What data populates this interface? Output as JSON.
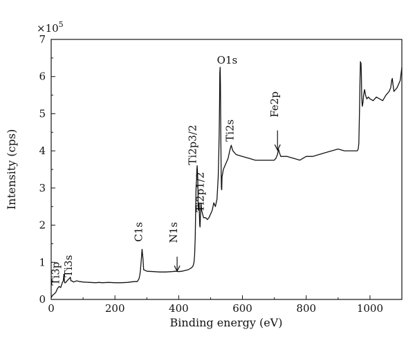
{
  "chart_data": {
    "type": "line",
    "xlabel": "Binding energy (eV)",
    "ylabel": "Intensity (cps)",
    "y_multiplier": "×10",
    "y_multiplier_exp": "5",
    "xlim": [
      0,
      1100
    ],
    "ylim": [
      0,
      7
    ],
    "x_ticks": [
      0,
      200,
      400,
      600,
      800,
      1000
    ],
    "y_ticks": [
      0,
      1,
      2,
      3,
      4,
      5,
      6,
      7
    ],
    "x_tick_labels": [
      "0",
      "200",
      "400",
      "600",
      "800",
      "1000"
    ],
    "y_tick_labels": [
      "0",
      "1",
      "2",
      "3",
      "4",
      "5",
      "6",
      "7"
    ],
    "grid": false,
    "line_color": "#111111",
    "series": [
      {
        "x": [
          0,
          5,
          10,
          15,
          20,
          25,
          30,
          35,
          38,
          40,
          42,
          45,
          50,
          55,
          58,
          60,
          62,
          65,
          70,
          80,
          90,
          100,
          120,
          140,
          150,
          160,
          180,
          200,
          220,
          240,
          260,
          270,
          275,
          278,
          280,
          283,
          285,
          288,
          290,
          295,
          300,
          320,
          340,
          360,
          380,
          390,
          400,
          410,
          420,
          430,
          440,
          445,
          448,
          450,
          452,
          453,
          454,
          455,
          456,
          457,
          458,
          460,
          461,
          462,
          463,
          464,
          465,
          466,
          467,
          468,
          470,
          472,
          475,
          478,
          480,
          485,
          490,
          495,
          500,
          505,
          510,
          515,
          520,
          522,
          524,
          526,
          527,
          528,
          529,
          530,
          531,
          532,
          533,
          534,
          535,
          536,
          538,
          540,
          545,
          550,
          555,
          560,
          563,
          565,
          568,
          570,
          580,
          600,
          620,
          640,
          660,
          680,
          700,
          705,
          710,
          713,
          716,
          720,
          740,
          760,
          780,
          800,
          820,
          840,
          860,
          880,
          900,
          920,
          940,
          960,
          963,
          965,
          967,
          969,
          970,
          972,
          973,
          974,
          975,
          976,
          978,
          980,
          983,
          986,
          990,
          995,
          1000,
          1010,
          1020,
          1030,
          1040,
          1050,
          1060,
          1065,
          1068,
          1070,
          1072,
          1075,
          1080,
          1085,
          1090,
          1095,
          1100
        ],
        "y": [
          0.05,
          0.12,
          0.15,
          0.2,
          0.3,
          0.35,
          0.32,
          0.45,
          0.5,
          0.68,
          0.45,
          0.45,
          0.5,
          0.55,
          0.57,
          0.6,
          0.5,
          0.5,
          0.47,
          0.5,
          0.48,
          0.47,
          0.46,
          0.45,
          0.46,
          0.45,
          0.46,
          0.45,
          0.45,
          0.46,
          0.48,
          0.48,
          0.55,
          0.65,
          0.8,
          1.1,
          1.35,
          1.1,
          0.8,
          0.78,
          0.76,
          0.75,
          0.74,
          0.74,
          0.75,
          0.76,
          0.75,
          0.76,
          0.78,
          0.8,
          0.85,
          0.9,
          1.0,
          1.2,
          1.7,
          2.3,
          2.9,
          3.1,
          3.2,
          3.5,
          3.6,
          3.2,
          2.5,
          2.4,
          2.5,
          2.6,
          2.3,
          2.0,
          1.95,
          2.2,
          2.6,
          2.4,
          2.3,
          2.2,
          2.2,
          2.2,
          2.15,
          2.2,
          2.3,
          2.4,
          2.6,
          2.5,
          2.7,
          3.0,
          3.3,
          4.0,
          4.5,
          5.2,
          6.1,
          6.25,
          5.8,
          4.5,
          3.5,
          3.0,
          2.95,
          3.3,
          3.4,
          3.5,
          3.6,
          3.7,
          3.8,
          4.0,
          4.1,
          4.15,
          4.05,
          4.0,
          3.9,
          3.85,
          3.8,
          3.75,
          3.75,
          3.75,
          3.75,
          3.8,
          3.9,
          4.05,
          3.95,
          3.85,
          3.85,
          3.8,
          3.75,
          3.85,
          3.85,
          3.9,
          3.95,
          4.0,
          4.05,
          4.0,
          4.0,
          4.0,
          4.05,
          4.2,
          5.0,
          6.0,
          6.4,
          6.35,
          6.0,
          5.5,
          5.3,
          5.2,
          5.3,
          5.5,
          5.65,
          5.5,
          5.4,
          5.45,
          5.4,
          5.35,
          5.45,
          5.4,
          5.35,
          5.5,
          5.6,
          5.7,
          5.9,
          5.95,
          5.8,
          5.6,
          5.65,
          5.7,
          5.8,
          5.9,
          6.25
        ]
      }
    ],
    "annotations": [
      {
        "label": "Ti3p",
        "x": 25,
        "y": 0.38,
        "rotate": -90
      },
      {
        "label": "Ti3s",
        "x": 65,
        "y": 0.6,
        "rotate": -90
      },
      {
        "label": "C1s",
        "x": 285,
        "y": 1.55,
        "rotate": -90
      },
      {
        "label": "N1s",
        "x": 395,
        "y": 1.52,
        "rotate": -90
      },
      {
        "label": "Ti2p3/2",
        "x": 455,
        "y": 3.62,
        "rotate": -90
      },
      {
        "label": "Ti2p1/2",
        "x": 478,
        "y": 2.35,
        "rotate": -90
      },
      {
        "label": "O1s",
        "x": 520,
        "y": 6.35,
        "rotate": 0
      },
      {
        "label": "Ti2s",
        "x": 572,
        "y": 4.25,
        "rotate": -90
      },
      {
        "label": "Fe2p",
        "x": 712,
        "y": 4.9,
        "rotate": -90
      }
    ],
    "arrows": [
      {
        "x": 395,
        "y_from": 1.15,
        "y_to": 0.76
      },
      {
        "x": 710,
        "y_from": 4.55,
        "y_to": 4.02
      }
    ]
  }
}
